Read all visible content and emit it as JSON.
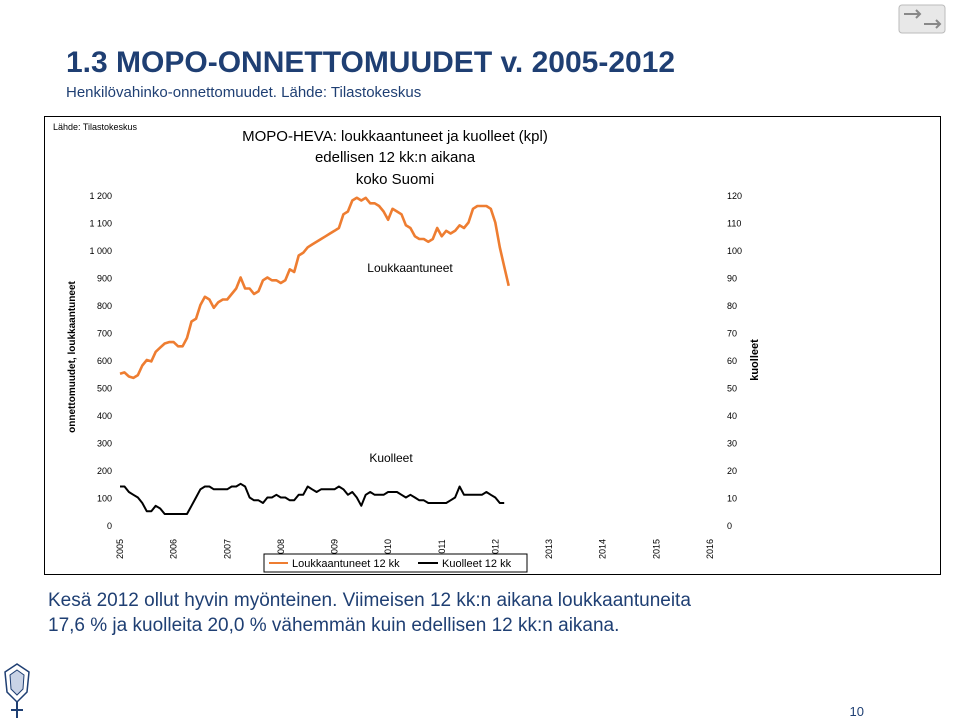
{
  "slide": {
    "title": "1.3 MOPO-ONNETTOMUUDET v. 2005-2012",
    "subtitle": "Henkilövahinko-onnettomuudet. Lähde: Tilastokeskus",
    "footnote_line1": "Kesä 2012 ollut hyvin myönteinen. Viimeisen 12 kk:n aikana loukkaantuneita",
    "footnote_line2": "17,6 % ja kuolleita 20,0 % vähemmän kuin edellisen 12 kk:n aikana.",
    "page_number": "10",
    "top_right_icon": "arrows-icon",
    "emblem_icon": "police-emblem-icon"
  },
  "chart_data": {
    "type": "line",
    "source_label": "Lähde: Tilastokeskus",
    "title_lines": [
      "MOPO-HEVA: loukkaantuneet ja kuolleet (kpl)",
      "edellisen 12 kk:n aikana",
      "koko Suomi"
    ],
    "ylabel": "onnettomuudet, loukkaantuneet",
    "y2label": "kuolleet",
    "ylim": [
      0,
      1200
    ],
    "y2lim": [
      0,
      120
    ],
    "yticks": [
      "0",
      "100",
      "200",
      "300",
      "400",
      "500",
      "600",
      "700",
      "800",
      "900",
      "1 000",
      "1 100",
      "1 200"
    ],
    "y2ticks": [
      "0",
      "10",
      "20",
      "30",
      "40",
      "50",
      "60",
      "70",
      "80",
      "90",
      "100",
      "110",
      "120"
    ],
    "xticks": [
      "2005",
      "2006",
      "2007",
      "2008",
      "2009",
      "2010",
      "2011",
      "2012",
      "2013",
      "2014",
      "2015",
      "2016"
    ],
    "xlim": [
      2005,
      2016
    ],
    "grid": false,
    "legend_position": "bottom",
    "annotations": [
      "Loukkaantuneet",
      "Kuolleet"
    ],
    "series": [
      {
        "name": "Loukkaantuneet 12 kk",
        "axis": "left",
        "color": "#ee7d31",
        "x_start": 2005.0,
        "x_step": 0.0833,
        "values": [
          550,
          555,
          540,
          535,
          545,
          580,
          600,
          595,
          630,
          645,
          660,
          665,
          665,
          650,
          650,
          680,
          740,
          750,
          800,
          830,
          820,
          790,
          810,
          820,
          820,
          840,
          860,
          900,
          860,
          860,
          840,
          850,
          890,
          900,
          890,
          890,
          880,
          890,
          930,
          920,
          980,
          990,
          1010,
          1020,
          1030,
          1040,
          1050,
          1060,
          1070,
          1080,
          1130,
          1140,
          1180,
          1190,
          1180,
          1190,
          1170,
          1170,
          1160,
          1140,
          1110,
          1150,
          1140,
          1130,
          1090,
          1080,
          1050,
          1040,
          1040,
          1030,
          1040,
          1080,
          1050,
          1070,
          1060,
          1070,
          1090,
          1080,
          1100,
          1150,
          1160,
          1160,
          1160,
          1150,
          1100,
          1010,
          940,
          870
        ]
      },
      {
        "name": "Kuolleet 12 kk",
        "axis": "right",
        "color": "#000000",
        "x_start": 2005.0,
        "x_step": 0.0833,
        "values": [
          14,
          14,
          12,
          11,
          10,
          8,
          5,
          5,
          7,
          6,
          4,
          4,
          4,
          4,
          4,
          4,
          7,
          10,
          13,
          14,
          14,
          13,
          13,
          13,
          13,
          14,
          14,
          15,
          14,
          10,
          9,
          9,
          8,
          10,
          10,
          11,
          10,
          10,
          9,
          9,
          11,
          11,
          14,
          13,
          12,
          13,
          13,
          13,
          13,
          14,
          13,
          11,
          12,
          10,
          7,
          11,
          12,
          11,
          11,
          11,
          12,
          12,
          12,
          11,
          10,
          11,
          10,
          9,
          9,
          8,
          8,
          8,
          8,
          8,
          9,
          10,
          14,
          11,
          11,
          11,
          11,
          11,
          12,
          11,
          10,
          8,
          8
        ]
      }
    ]
  }
}
